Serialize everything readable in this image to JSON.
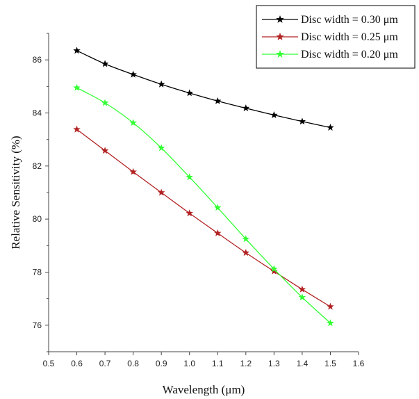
{
  "chart_data": {
    "type": "line",
    "title": "",
    "xlabel": "Wavelength (μm)",
    "ylabel": "Relative Sensitivity (%)",
    "xlim": [
      0.5,
      1.6
    ],
    "ylim": [
      75,
      87
    ],
    "x_ticks": [
      "0.5",
      "0.6",
      "0.7",
      "0.8",
      "0.9",
      "1.0",
      "1.1",
      "1.2",
      "1.3",
      "1.4",
      "1.5",
      "1.6"
    ],
    "y_ticks": [
      "76",
      "78",
      "80",
      "82",
      "84",
      "86"
    ],
    "grid": false,
    "legend_position": "top-right",
    "x": [
      0.6,
      0.7,
      0.8,
      0.9,
      1.0,
      1.1,
      1.2,
      1.3,
      1.4,
      1.5
    ],
    "series": [
      {
        "name": "Disc width = 0.30 μm",
        "color": "#000000",
        "values": [
          86.35,
          85.85,
          85.45,
          85.08,
          84.75,
          84.45,
          84.18,
          83.92,
          83.68,
          83.45
        ]
      },
      {
        "name": "Disc width = 0.25 μm",
        "color": "#b22222",
        "values": [
          83.38,
          82.58,
          81.78,
          81.0,
          80.22,
          79.47,
          78.73,
          78.03,
          77.35,
          76.7
        ]
      },
      {
        "name": "Disc width = 0.20 μm",
        "color": "#33ff33",
        "values": [
          84.95,
          84.38,
          83.63,
          82.68,
          81.58,
          80.43,
          79.25,
          78.12,
          77.05,
          76.08
        ]
      }
    ]
  }
}
